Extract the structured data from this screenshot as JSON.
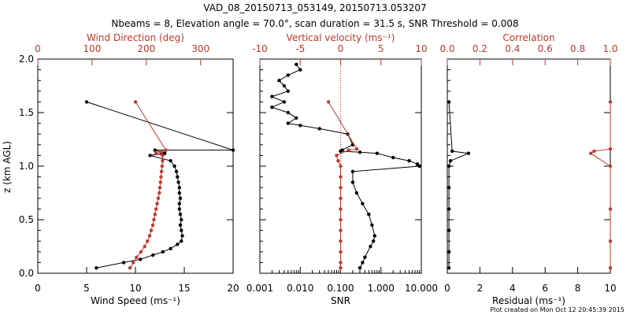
{
  "title_line1": "VAD_08_20150713_053149, 20150713.053207",
  "title_line2": "Nbeams = 8, Elevation angle = 70.0°, scan duration = 31.5 s, SNR Threshold = 0.008",
  "footer": "Plot created on Mon Oct 12 20:45:39 2015",
  "colors": {
    "black": "#000000",
    "red": "#c0392b"
  },
  "chart_data": [
    {
      "type": "scatter",
      "panel": "wind",
      "ylabel": "z (km AGL)",
      "ylim": [
        0,
        2.0
      ],
      "yticks": [
        "0.0",
        "0.5",
        "1.0",
        "1.5",
        "2.0"
      ],
      "bottom_axis": {
        "label": "Wind Speed (ms⁻¹)",
        "range": [
          0,
          20
        ],
        "ticks": [
          "0",
          "5",
          "10",
          "15",
          "20"
        ]
      },
      "top_axis": {
        "label": "Wind Direction (deg)",
        "range": [
          0,
          360
        ],
        "ticks": [
          "0",
          "100",
          "200",
          "300"
        ],
        "color": "red"
      },
      "series": [
        {
          "axis": "bottom",
          "color": "black",
          "points": [
            [
              6.0,
              0.05
            ],
            [
              8.8,
              0.1
            ],
            [
              10.5,
              0.13
            ],
            [
              11.8,
              0.17
            ],
            [
              12.8,
              0.2
            ],
            [
              13.6,
              0.23
            ],
            [
              14.3,
              0.27
            ],
            [
              14.7,
              0.3
            ],
            [
              14.8,
              0.35
            ],
            [
              14.7,
              0.4
            ],
            [
              14.6,
              0.45
            ],
            [
              14.7,
              0.5
            ],
            [
              14.6,
              0.55
            ],
            [
              14.5,
              0.6
            ],
            [
              14.5,
              0.65
            ],
            [
              14.6,
              0.7
            ],
            [
              14.5,
              0.75
            ],
            [
              14.5,
              0.8
            ],
            [
              14.4,
              0.85
            ],
            [
              14.3,
              0.9
            ],
            [
              14.2,
              0.95
            ],
            [
              14.0,
              1.0
            ],
            [
              13.6,
              1.05
            ],
            [
              11.5,
              1.1
            ],
            [
              13.0,
              1.12
            ],
            [
              12.0,
              1.15
            ],
            [
              20.0,
              1.15
            ],
            [
              5.0,
              1.6
            ]
          ]
        },
        {
          "axis": "top",
          "color": "red",
          "points": [
            [
              170,
              0.05
            ],
            [
              176,
              0.1
            ],
            [
              182,
              0.15
            ],
            [
              190,
              0.2
            ],
            [
              197,
              0.25
            ],
            [
              202,
              0.3
            ],
            [
              206,
              0.35
            ],
            [
              209,
              0.4
            ],
            [
              212,
              0.45
            ],
            [
              214,
              0.5
            ],
            [
              216,
              0.55
            ],
            [
              218,
              0.6
            ],
            [
              220,
              0.65
            ],
            [
              222,
              0.7
            ],
            [
              224,
              0.75
            ],
            [
              225,
              0.8
            ],
            [
              226,
              0.85
            ],
            [
              227,
              0.9
            ],
            [
              228,
              0.95
            ],
            [
              229,
              1.0
            ],
            [
              230,
              1.05
            ],
            [
              230,
              1.1
            ],
            [
              218,
              1.12
            ],
            [
              228,
              1.13
            ],
            [
              236,
              1.15
            ],
            [
              180,
              1.6
            ]
          ]
        }
      ]
    },
    {
      "type": "scatter",
      "panel": "snr",
      "ylim": [
        0,
        2.0
      ],
      "bottom_axis": {
        "label": "SNR",
        "scale": "log",
        "range": [
          0.001,
          10
        ],
        "ticks": [
          "0.001",
          "0.010",
          "0.100",
          "1.000",
          "10.000"
        ]
      },
      "top_axis": {
        "label": "Vertical velocity (ms⁻¹)",
        "range": [
          -10,
          10
        ],
        "ticks": [
          "-10",
          "-5",
          "0",
          "5",
          "10"
        ],
        "color": "red"
      },
      "zero_line": 0,
      "series": [
        {
          "axis": "bottom",
          "color": "black",
          "points": [
            [
              0.3,
              0.05
            ],
            [
              0.35,
              0.1
            ],
            [
              0.4,
              0.15
            ],
            [
              0.55,
              0.25
            ],
            [
              0.65,
              0.3
            ],
            [
              0.7,
              0.35
            ],
            [
              0.6,
              0.45
            ],
            [
              0.5,
              0.55
            ],
            [
              0.35,
              0.65
            ],
            [
              0.25,
              0.75
            ],
            [
              0.2,
              0.85
            ],
            [
              0.2,
              0.95
            ],
            [
              9.0,
              1.0
            ],
            [
              8.0,
              1.02
            ],
            [
              5.0,
              1.05
            ],
            [
              2.0,
              1.08
            ],
            [
              0.8,
              1.12
            ],
            [
              0.3,
              1.13
            ],
            [
              0.1,
              1.14
            ],
            [
              0.11,
              1.15
            ],
            [
              0.2,
              1.2
            ],
            [
              0.15,
              1.3
            ],
            [
              0.03,
              1.35
            ],
            [
              0.01,
              1.38
            ],
            [
              0.005,
              1.4
            ],
            [
              0.008,
              1.45
            ],
            [
              0.005,
              1.5
            ],
            [
              0.002,
              1.55
            ],
            [
              0.004,
              1.6
            ],
            [
              0.002,
              1.65
            ],
            [
              0.005,
              1.7
            ],
            [
              0.004,
              1.75
            ],
            [
              0.003,
              1.8
            ],
            [
              0.005,
              1.85
            ],
            [
              0.01,
              1.9
            ],
            [
              0.008,
              1.95
            ]
          ]
        },
        {
          "axis": "top",
          "color": "red",
          "points": [
            [
              0.0,
              0.05
            ],
            [
              0.0,
              0.1
            ],
            [
              0.0,
              0.2
            ],
            [
              0.0,
              0.3
            ],
            [
              0.0,
              0.4
            ],
            [
              0.0,
              0.5
            ],
            [
              0.0,
              0.6
            ],
            [
              0.0,
              0.7
            ],
            [
              0.0,
              0.8
            ],
            [
              0.0,
              0.9
            ],
            [
              0.0,
              1.0
            ],
            [
              -0.3,
              1.05
            ],
            [
              -0.5,
              1.1
            ],
            [
              1.0,
              1.15
            ],
            [
              2.0,
              1.16
            ],
            [
              -1.5,
              1.6
            ]
          ]
        }
      ]
    },
    {
      "type": "scatter",
      "panel": "residual",
      "ylim": [
        0,
        2.0
      ],
      "bottom_axis": {
        "label": "Residual (ms⁻¹)",
        "range": [
          0,
          10
        ],
        "ticks": [
          "0",
          "2",
          "4",
          "6",
          "8",
          "10"
        ]
      },
      "top_axis": {
        "label": "Correlation",
        "range": [
          0,
          1.0
        ],
        "ticks": [
          "0.0",
          "0.2",
          "0.4",
          "0.6",
          "0.8",
          "1.0"
        ],
        "color": "red"
      },
      "series": [
        {
          "axis": "bottom",
          "color": "black",
          "points": [
            [
              0.1,
              0.05
            ],
            [
              0.1,
              0.2
            ],
            [
              0.1,
              0.4
            ],
            [
              0.1,
              0.6
            ],
            [
              0.1,
              0.8
            ],
            [
              0.1,
              1.0
            ],
            [
              0.2,
              1.05
            ],
            [
              1.3,
              1.12
            ],
            [
              0.3,
              1.14
            ],
            [
              0.1,
              1.6
            ]
          ]
        },
        {
          "axis": "top",
          "color": "red",
          "points": [
            [
              1.0,
              0.05
            ],
            [
              1.0,
              0.3
            ],
            [
              1.0,
              0.6
            ],
            [
              1.0,
              1.0
            ],
            [
              0.88,
              1.12
            ],
            [
              0.9,
              1.14
            ],
            [
              1.0,
              1.16
            ],
            [
              1.0,
              1.6
            ]
          ]
        }
      ]
    }
  ]
}
